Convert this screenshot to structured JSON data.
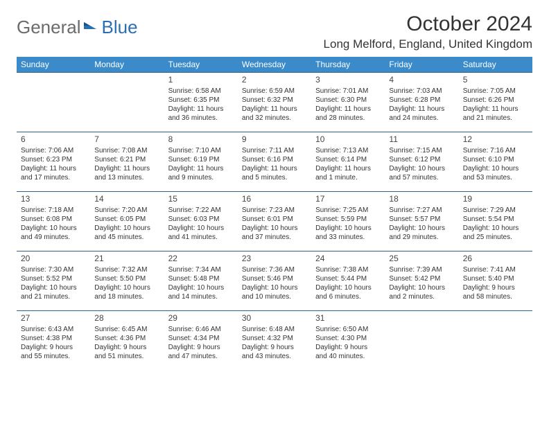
{
  "logo": {
    "word1": "General",
    "word2": "Blue"
  },
  "header": {
    "month": "October 2024",
    "location": "Long Melford, England, United Kingdom"
  },
  "colors": {
    "header_bg": "#3b8bca",
    "header_text": "#ffffff",
    "row_border": "#2c5f8d",
    "text": "#333333",
    "logo_gray": "#6b6b6b",
    "logo_blue": "#2b6fb3"
  },
  "daynames": [
    "Sunday",
    "Monday",
    "Tuesday",
    "Wednesday",
    "Thursday",
    "Friday",
    "Saturday"
  ],
  "weeks": [
    [
      null,
      null,
      {
        "n": "1",
        "sr": "Sunrise: 6:58 AM",
        "ss": "Sunset: 6:35 PM",
        "dl": "Daylight: 11 hours and 36 minutes."
      },
      {
        "n": "2",
        "sr": "Sunrise: 6:59 AM",
        "ss": "Sunset: 6:32 PM",
        "dl": "Daylight: 11 hours and 32 minutes."
      },
      {
        "n": "3",
        "sr": "Sunrise: 7:01 AM",
        "ss": "Sunset: 6:30 PM",
        "dl": "Daylight: 11 hours and 28 minutes."
      },
      {
        "n": "4",
        "sr": "Sunrise: 7:03 AM",
        "ss": "Sunset: 6:28 PM",
        "dl": "Daylight: 11 hours and 24 minutes."
      },
      {
        "n": "5",
        "sr": "Sunrise: 7:05 AM",
        "ss": "Sunset: 6:26 PM",
        "dl": "Daylight: 11 hours and 21 minutes."
      }
    ],
    [
      {
        "n": "6",
        "sr": "Sunrise: 7:06 AM",
        "ss": "Sunset: 6:23 PM",
        "dl": "Daylight: 11 hours and 17 minutes."
      },
      {
        "n": "7",
        "sr": "Sunrise: 7:08 AM",
        "ss": "Sunset: 6:21 PM",
        "dl": "Daylight: 11 hours and 13 minutes."
      },
      {
        "n": "8",
        "sr": "Sunrise: 7:10 AM",
        "ss": "Sunset: 6:19 PM",
        "dl": "Daylight: 11 hours and 9 minutes."
      },
      {
        "n": "9",
        "sr": "Sunrise: 7:11 AM",
        "ss": "Sunset: 6:16 PM",
        "dl": "Daylight: 11 hours and 5 minutes."
      },
      {
        "n": "10",
        "sr": "Sunrise: 7:13 AM",
        "ss": "Sunset: 6:14 PM",
        "dl": "Daylight: 11 hours and 1 minute."
      },
      {
        "n": "11",
        "sr": "Sunrise: 7:15 AM",
        "ss": "Sunset: 6:12 PM",
        "dl": "Daylight: 10 hours and 57 minutes."
      },
      {
        "n": "12",
        "sr": "Sunrise: 7:16 AM",
        "ss": "Sunset: 6:10 PM",
        "dl": "Daylight: 10 hours and 53 minutes."
      }
    ],
    [
      {
        "n": "13",
        "sr": "Sunrise: 7:18 AM",
        "ss": "Sunset: 6:08 PM",
        "dl": "Daylight: 10 hours and 49 minutes."
      },
      {
        "n": "14",
        "sr": "Sunrise: 7:20 AM",
        "ss": "Sunset: 6:05 PM",
        "dl": "Daylight: 10 hours and 45 minutes."
      },
      {
        "n": "15",
        "sr": "Sunrise: 7:22 AM",
        "ss": "Sunset: 6:03 PM",
        "dl": "Daylight: 10 hours and 41 minutes."
      },
      {
        "n": "16",
        "sr": "Sunrise: 7:23 AM",
        "ss": "Sunset: 6:01 PM",
        "dl": "Daylight: 10 hours and 37 minutes."
      },
      {
        "n": "17",
        "sr": "Sunrise: 7:25 AM",
        "ss": "Sunset: 5:59 PM",
        "dl": "Daylight: 10 hours and 33 minutes."
      },
      {
        "n": "18",
        "sr": "Sunrise: 7:27 AM",
        "ss": "Sunset: 5:57 PM",
        "dl": "Daylight: 10 hours and 29 minutes."
      },
      {
        "n": "19",
        "sr": "Sunrise: 7:29 AM",
        "ss": "Sunset: 5:54 PM",
        "dl": "Daylight: 10 hours and 25 minutes."
      }
    ],
    [
      {
        "n": "20",
        "sr": "Sunrise: 7:30 AM",
        "ss": "Sunset: 5:52 PM",
        "dl": "Daylight: 10 hours and 21 minutes."
      },
      {
        "n": "21",
        "sr": "Sunrise: 7:32 AM",
        "ss": "Sunset: 5:50 PM",
        "dl": "Daylight: 10 hours and 18 minutes."
      },
      {
        "n": "22",
        "sr": "Sunrise: 7:34 AM",
        "ss": "Sunset: 5:48 PM",
        "dl": "Daylight: 10 hours and 14 minutes."
      },
      {
        "n": "23",
        "sr": "Sunrise: 7:36 AM",
        "ss": "Sunset: 5:46 PM",
        "dl": "Daylight: 10 hours and 10 minutes."
      },
      {
        "n": "24",
        "sr": "Sunrise: 7:38 AM",
        "ss": "Sunset: 5:44 PM",
        "dl": "Daylight: 10 hours and 6 minutes."
      },
      {
        "n": "25",
        "sr": "Sunrise: 7:39 AM",
        "ss": "Sunset: 5:42 PM",
        "dl": "Daylight: 10 hours and 2 minutes."
      },
      {
        "n": "26",
        "sr": "Sunrise: 7:41 AM",
        "ss": "Sunset: 5:40 PM",
        "dl": "Daylight: 9 hours and 58 minutes."
      }
    ],
    [
      {
        "n": "27",
        "sr": "Sunrise: 6:43 AM",
        "ss": "Sunset: 4:38 PM",
        "dl": "Daylight: 9 hours and 55 minutes."
      },
      {
        "n": "28",
        "sr": "Sunrise: 6:45 AM",
        "ss": "Sunset: 4:36 PM",
        "dl": "Daylight: 9 hours and 51 minutes."
      },
      {
        "n": "29",
        "sr": "Sunrise: 6:46 AM",
        "ss": "Sunset: 4:34 PM",
        "dl": "Daylight: 9 hours and 47 minutes."
      },
      {
        "n": "30",
        "sr": "Sunrise: 6:48 AM",
        "ss": "Sunset: 4:32 PM",
        "dl": "Daylight: 9 hours and 43 minutes."
      },
      {
        "n": "31",
        "sr": "Sunrise: 6:50 AM",
        "ss": "Sunset: 4:30 PM",
        "dl": "Daylight: 9 hours and 40 minutes."
      },
      null,
      null
    ]
  ]
}
